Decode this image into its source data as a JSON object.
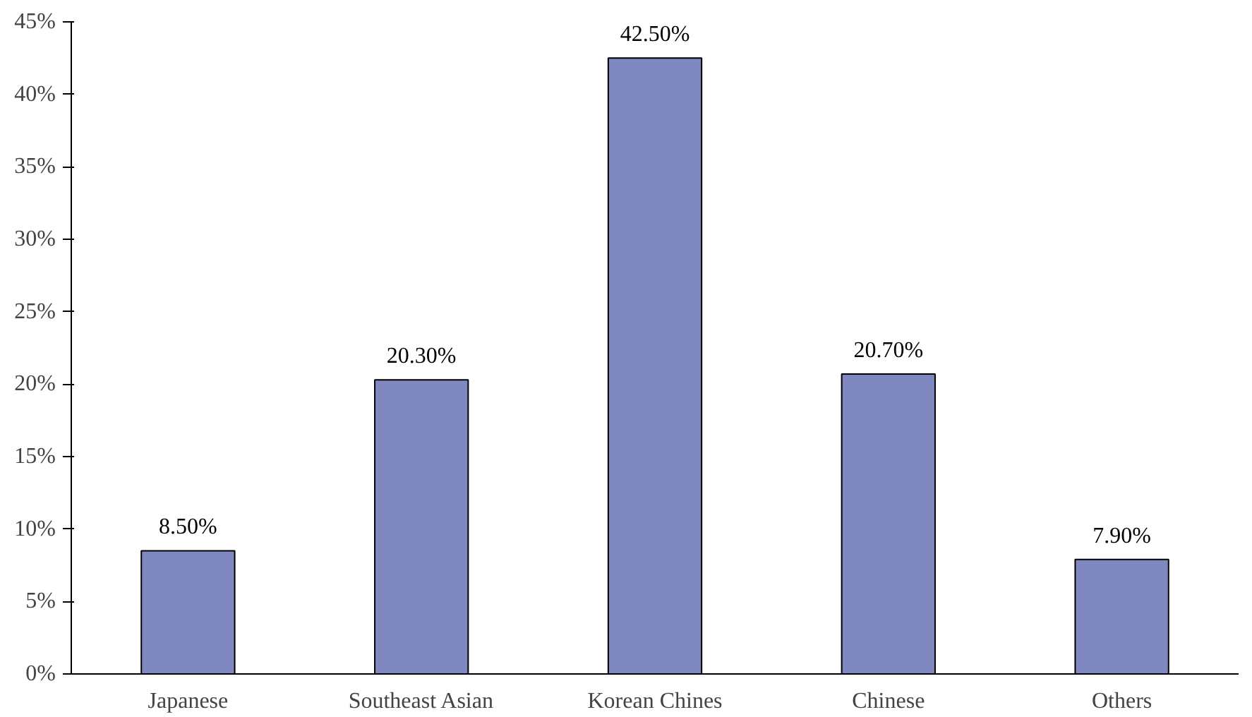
{
  "chart_data": {
    "type": "bar",
    "categories": [
      "Japanese",
      "Southeast Asian",
      "Korean Chines",
      "Chinese",
      "Others"
    ],
    "values": [
      8.5,
      20.3,
      42.5,
      20.7,
      7.9
    ],
    "value_labels": [
      "8.50%",
      "20.30%",
      "42.50%",
      "20.70%",
      "7.90%"
    ],
    "color": "#8088c0",
    "ylim": [
      0,
      45
    ],
    "yticks": [
      {
        "value": 0,
        "label": "0%"
      },
      {
        "value": 5,
        "label": "5%"
      },
      {
        "value": 10,
        "label": "10%"
      },
      {
        "value": 15,
        "label": "15%"
      },
      {
        "value": 20,
        "label": "20%"
      },
      {
        "value": 25,
        "label": "25%"
      },
      {
        "value": 30,
        "label": "30%"
      },
      {
        "value": 35,
        "label": "35%"
      },
      {
        "value": 40,
        "label": "40%"
      },
      {
        "value": 45,
        "label": "45%"
      }
    ],
    "grid": false
  }
}
